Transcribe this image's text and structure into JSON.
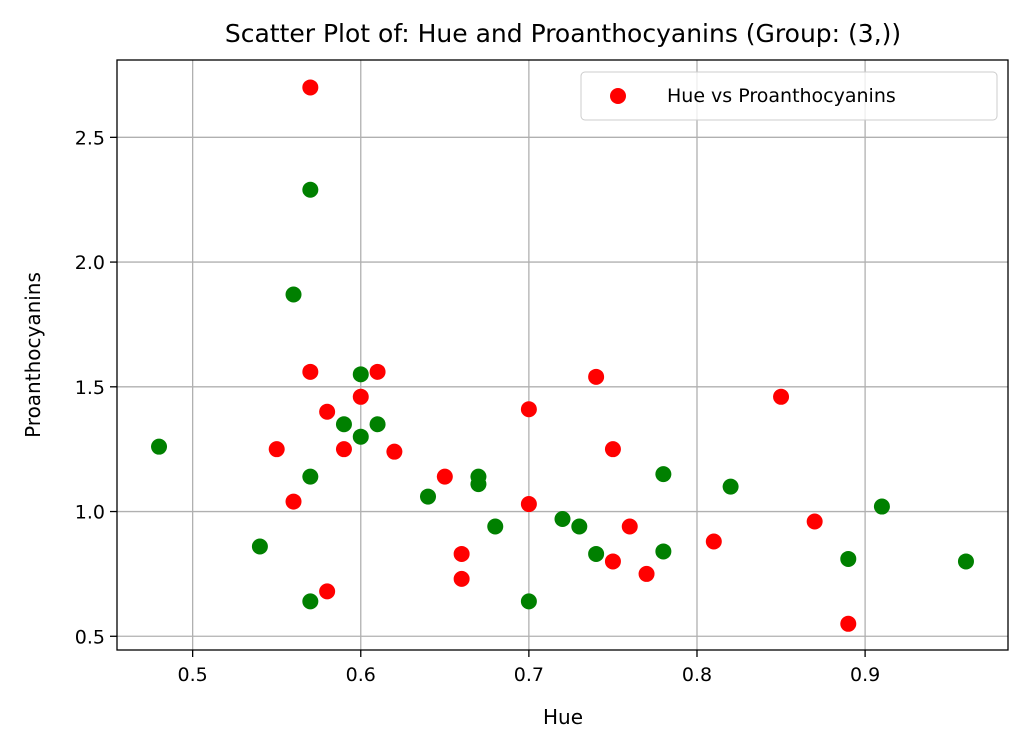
{
  "chart_data": {
    "type": "scatter",
    "title": "Scatter Plot of: Hue and Proanthocyanins (Group: (3,))",
    "xlabel": "Hue",
    "ylabel": "Proanthocyanins",
    "xlim": [
      0.455,
      0.985
    ],
    "ylim": [
      0.445,
      2.81
    ],
    "xticks": [
      0.5,
      0.6,
      0.7,
      0.8,
      0.9
    ],
    "xtick_labels": [
      "0.5",
      "0.6",
      "0.7",
      "0.8",
      "0.9"
    ],
    "yticks": [
      0.5,
      1.0,
      1.5,
      2.0,
      2.5
    ],
    "ytick_labels": [
      "0.5",
      "1.0",
      "1.5",
      "2.0",
      "2.5"
    ],
    "grid": true,
    "legend": {
      "placement": "top-right",
      "entries": [
        {
          "label": "Hue vs Proanthocyanins",
          "color": "#ff0000"
        }
      ]
    },
    "series": [
      {
        "color": "#ff0000",
        "points": [
          [
            0.57,
            2.7
          ],
          [
            0.57,
            1.56
          ],
          [
            0.61,
            1.56
          ],
          [
            0.6,
            1.46
          ],
          [
            0.58,
            1.4
          ],
          [
            0.55,
            1.25
          ],
          [
            0.59,
            1.25
          ],
          [
            0.62,
            1.24
          ],
          [
            0.56,
            1.04
          ],
          [
            0.58,
            0.68
          ],
          [
            0.65,
            1.14
          ],
          [
            0.66,
            0.83
          ],
          [
            0.66,
            0.73
          ],
          [
            0.7,
            1.41
          ],
          [
            0.7,
            1.03
          ],
          [
            0.74,
            1.54
          ],
          [
            0.75,
            1.25
          ],
          [
            0.76,
            0.94
          ],
          [
            0.75,
            0.8
          ],
          [
            0.77,
            0.75
          ],
          [
            0.81,
            0.88
          ],
          [
            0.85,
            1.46
          ],
          [
            0.87,
            0.96
          ],
          [
            0.89,
            0.55
          ]
        ]
      },
      {
        "color": "#008000",
        "points": [
          [
            0.57,
            2.29
          ],
          [
            0.56,
            1.87
          ],
          [
            0.48,
            1.26
          ],
          [
            0.6,
            1.55
          ],
          [
            0.59,
            1.35
          ],
          [
            0.61,
            1.35
          ],
          [
            0.6,
            1.3
          ],
          [
            0.57,
            1.14
          ],
          [
            0.54,
            0.86
          ],
          [
            0.57,
            0.64
          ],
          [
            0.64,
            1.06
          ],
          [
            0.67,
            1.14
          ],
          [
            0.67,
            1.11
          ],
          [
            0.68,
            0.94
          ],
          [
            0.72,
            0.97
          ],
          [
            0.73,
            0.94
          ],
          [
            0.74,
            0.83
          ],
          [
            0.7,
            0.64
          ],
          [
            0.78,
            1.15
          ],
          [
            0.78,
            0.84
          ],
          [
            0.82,
            1.1
          ],
          [
            0.89,
            0.81
          ],
          [
            0.91,
            1.02
          ],
          [
            0.96,
            0.8
          ]
        ]
      }
    ]
  }
}
